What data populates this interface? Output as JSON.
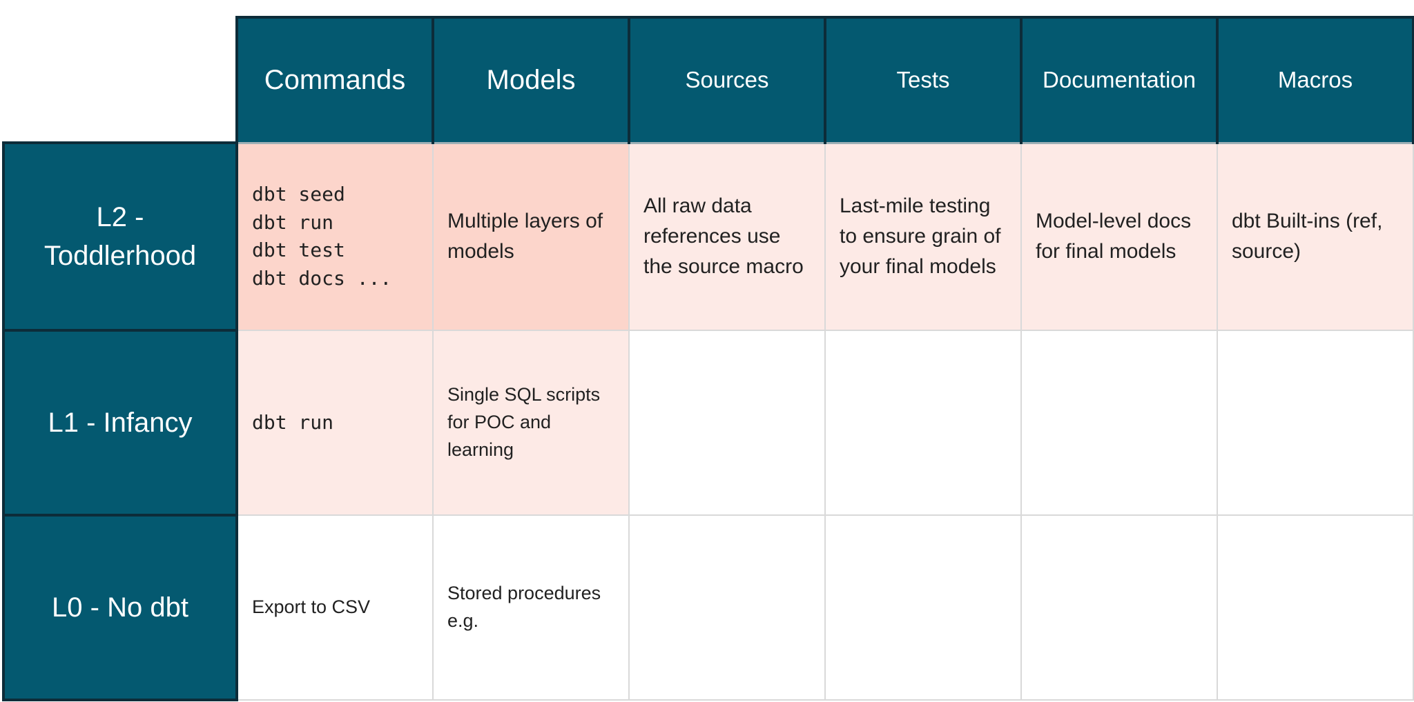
{
  "table": {
    "column_headers": [
      {
        "label": "Commands"
      },
      {
        "label": "Models"
      },
      {
        "label": "Sources"
      },
      {
        "label": "Tests"
      },
      {
        "label": "Documentation"
      },
      {
        "label": "Macros"
      }
    ],
    "rows": [
      {
        "label": "L2 -\nToddlerhood",
        "cells": {
          "commands": "dbt seed\ndbt run\ndbt test\ndbt docs ...",
          "models": "Multiple layers of models",
          "sources": "All raw data references use the source macro",
          "tests": "Last-mile testing to ensure grain of your final models",
          "documentation": "Model-level docs for final models",
          "macros": "dbt Built-ins (ref, source)"
        }
      },
      {
        "label": "L1 - Infancy",
        "cells": {
          "commands": "dbt run",
          "models": "Single SQL scripts for POC and learning",
          "sources": "",
          "tests": "",
          "documentation": "",
          "macros": ""
        }
      },
      {
        "label": "L0 - No dbt",
        "cells": {
          "commands": "Export to CSV",
          "models": "Stored procedures e.g.",
          "sources": "",
          "tests": "",
          "documentation": "",
          "macros": ""
        }
      }
    ]
  },
  "colors": {
    "header_fill": "#045970",
    "header_border": "#0d2c39",
    "header_bottom_divider": "#9eb0b6",
    "grid_line": "#d9d9d9",
    "highlight_strong": "#fcd5cb",
    "highlight_light": "#fdeae6",
    "header_text": "#ffffff",
    "cell_text": "#212121"
  }
}
